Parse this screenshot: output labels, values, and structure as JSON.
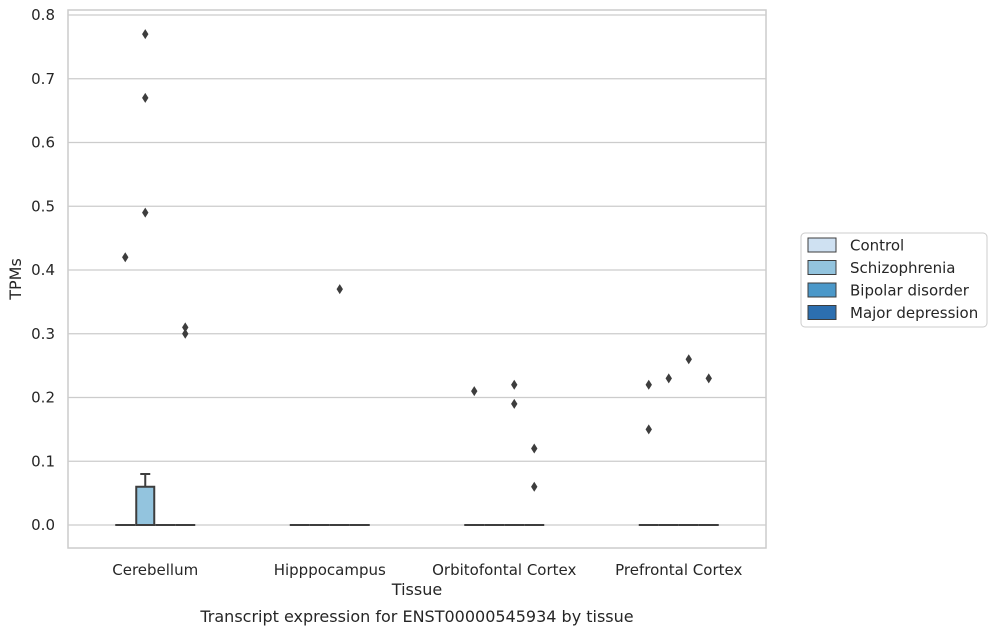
{
  "chart_data": {
    "type": "box",
    "caption": "Transcript expression for ENST00000545934 by tissue",
    "xlabel": "Tissue",
    "ylabel": "TPMs",
    "ylim": [
      -0.04,
      0.81
    ],
    "yticks": [
      "0.0",
      "0.1",
      "0.2",
      "0.3",
      "0.4",
      "0.5",
      "0.6",
      "0.7",
      "0.8"
    ],
    "grid": true,
    "legend_position": "right",
    "categories": [
      "Cerebellum",
      "Hipppocampus",
      "Orbitofontal Cortex",
      "Prefrontal Cortex"
    ],
    "series": [
      {
        "name": "Control",
        "color": "#cfe1f2",
        "boxes": [
          {
            "q1": 0,
            "median": 0,
            "q3": 0,
            "whisker_low": 0,
            "whisker_high": 0,
            "outliers": [
              0.42
            ]
          },
          {
            "q1": 0,
            "median": 0,
            "q3": 0,
            "whisker_low": 0,
            "whisker_high": 0,
            "outliers": []
          },
          {
            "q1": 0,
            "median": 0,
            "q3": 0,
            "whisker_low": 0,
            "whisker_high": 0,
            "outliers": [
              0.21
            ]
          },
          {
            "q1": 0,
            "median": 0,
            "q3": 0,
            "whisker_low": 0,
            "whisker_high": 0,
            "outliers": [
              0.22,
              0.15
            ]
          }
        ]
      },
      {
        "name": "Schizophrenia",
        "color": "#93c4de",
        "boxes": [
          {
            "q1": 0,
            "median": 0,
            "q3": 0.06,
            "whisker_low": 0,
            "whisker_high": 0.08,
            "outliers": [
              0.77,
              0.67,
              0.49
            ]
          },
          {
            "q1": 0,
            "median": 0,
            "q3": 0,
            "whisker_low": 0,
            "whisker_high": 0,
            "outliers": []
          },
          {
            "q1": 0,
            "median": 0,
            "q3": 0,
            "whisker_low": 0,
            "whisker_high": 0,
            "outliers": []
          },
          {
            "q1": 0,
            "median": 0,
            "q3": 0,
            "whisker_low": 0,
            "whisker_high": 0,
            "outliers": [
              0.23
            ]
          }
        ]
      },
      {
        "name": "Bipolar disorder",
        "color": "#4b98c9",
        "boxes": [
          {
            "q1": 0,
            "median": 0,
            "q3": 0,
            "whisker_low": 0,
            "whisker_high": 0,
            "outliers": []
          },
          {
            "q1": 0,
            "median": 0,
            "q3": 0,
            "whisker_low": 0,
            "whisker_high": 0,
            "outliers": [
              0.37
            ]
          },
          {
            "q1": 0,
            "median": 0,
            "q3": 0,
            "whisker_low": 0,
            "whisker_high": 0,
            "outliers": [
              0.22,
              0.19
            ]
          },
          {
            "q1": 0,
            "median": 0,
            "q3": 0,
            "whisker_low": 0,
            "whisker_high": 0,
            "outliers": [
              0.26
            ]
          }
        ]
      },
      {
        "name": "Major depression",
        "color": "#2c6fb0",
        "boxes": [
          {
            "q1": 0,
            "median": 0,
            "q3": 0,
            "whisker_low": 0,
            "whisker_high": 0,
            "outliers": [
              0.31,
              0.3
            ]
          },
          {
            "q1": 0,
            "median": 0,
            "q3": 0,
            "whisker_low": 0,
            "whisker_high": 0,
            "outliers": []
          },
          {
            "q1": 0,
            "median": 0,
            "q3": 0,
            "whisker_low": 0,
            "whisker_high": 0,
            "outliers": [
              0.12,
              0.06
            ]
          },
          {
            "q1": 0,
            "median": 0,
            "q3": 0,
            "whisker_low": 0,
            "whisker_high": 0,
            "outliers": [
              0.23
            ]
          }
        ]
      }
    ]
  }
}
